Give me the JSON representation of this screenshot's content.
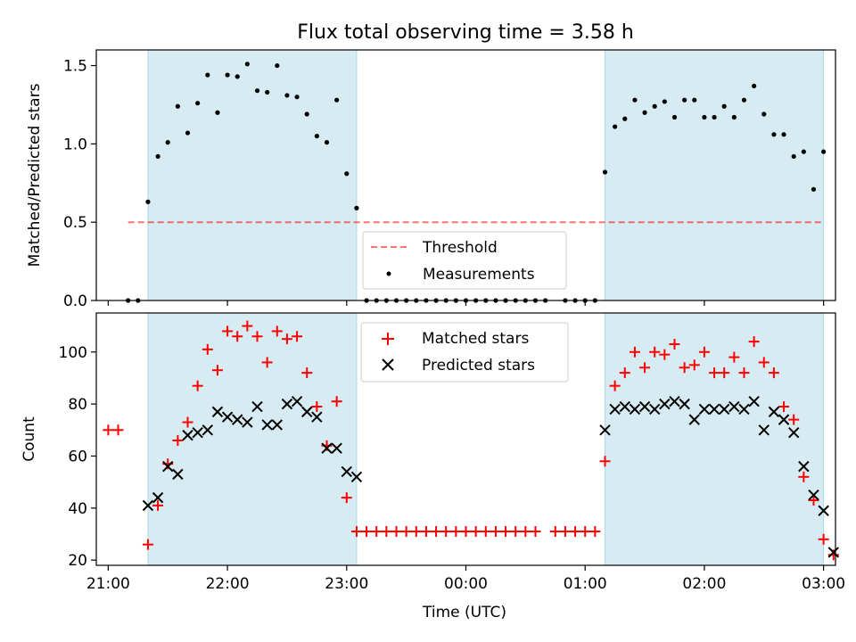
{
  "title": "Flux total observing time = 3.58 h",
  "colors": {
    "shade": "#add8e6",
    "threshold": "#ff0000",
    "matched": "#ff0000",
    "predicted": "#000000",
    "measurement": "#000000"
  },
  "x_ticks": [
    "21:00",
    "22:00",
    "23:00",
    "00:00",
    "01:00",
    "02:00",
    "03:00"
  ],
  "chart_data": [
    {
      "type": "scatter",
      "ylabel": "Matched/Predicted stars",
      "xlabel": "",
      "ylim": [
        0,
        1.6
      ],
      "y_ticks": [
        "0.0",
        "0.5",
        "1.0",
        "1.5"
      ],
      "legend": {
        "placement": "lower-center",
        "threshold_label": "Threshold",
        "measurements_label": "Measurements"
      },
      "threshold": {
        "value": 0.5,
        "x_start": "21:10",
        "x_end": "03:00"
      },
      "shaded_intervals": [
        [
          "21:20",
          "23:05"
        ],
        [
          "01:10",
          "03:00"
        ]
      ],
      "series": [
        {
          "name": "Measurements",
          "points": [
            [
              "21:10",
              0
            ],
            [
              "21:15",
              0
            ],
            [
              "21:20",
              0.63
            ],
            [
              "21:25",
              0.92
            ],
            [
              "21:30",
              1.01
            ],
            [
              "21:35",
              1.24
            ],
            [
              "21:40",
              1.07
            ],
            [
              "21:45",
              1.26
            ],
            [
              "21:50",
              1.44
            ],
            [
              "21:55",
              1.2
            ],
            [
              "22:00",
              1.44
            ],
            [
              "22:05",
              1.43
            ],
            [
              "22:10",
              1.51
            ],
            [
              "22:15",
              1.34
            ],
            [
              "22:20",
              1.33
            ],
            [
              "22:25",
              1.5
            ],
            [
              "22:30",
              1.31
            ],
            [
              "22:35",
              1.3
            ],
            [
              "22:40",
              1.19
            ],
            [
              "22:45",
              1.05
            ],
            [
              "22:50",
              1.01
            ],
            [
              "22:55",
              1.28
            ],
            [
              "23:00",
              0.81
            ],
            [
              "23:05",
              0.59
            ],
            [
              "23:10",
              0
            ],
            [
              "23:15",
              0
            ],
            [
              "23:20",
              0
            ],
            [
              "23:25",
              0
            ],
            [
              "23:30",
              0
            ],
            [
              "23:35",
              0
            ],
            [
              "23:40",
              0
            ],
            [
              "23:45",
              0
            ],
            [
              "23:50",
              0
            ],
            [
              "23:55",
              0
            ],
            [
              "00:00",
              0
            ],
            [
              "00:05",
              0
            ],
            [
              "00:10",
              0
            ],
            [
              "00:15",
              0
            ],
            [
              "00:20",
              0
            ],
            [
              "00:25",
              0
            ],
            [
              "00:30",
              0
            ],
            [
              "00:35",
              0
            ],
            [
              "00:40",
              0
            ],
            [
              "00:50",
              0
            ],
            [
              "00:55",
              0
            ],
            [
              "01:00",
              0
            ],
            [
              "01:05",
              0
            ],
            [
              "01:10",
              0.82
            ],
            [
              "01:15",
              1.11
            ],
            [
              "01:20",
              1.16
            ],
            [
              "01:25",
              1.28
            ],
            [
              "01:30",
              1.2
            ],
            [
              "01:35",
              1.24
            ],
            [
              "01:40",
              1.27
            ],
            [
              "01:45",
              1.17
            ],
            [
              "01:50",
              1.28
            ],
            [
              "01:55",
              1.28
            ],
            [
              "02:00",
              1.17
            ],
            [
              "02:05",
              1.17
            ],
            [
              "02:10",
              1.24
            ],
            [
              "02:15",
              1.17
            ],
            [
              "02:20",
              1.28
            ],
            [
              "02:25",
              1.37
            ],
            [
              "02:30",
              1.19
            ],
            [
              "02:35",
              1.06
            ],
            [
              "02:40",
              1.06
            ],
            [
              "02:45",
              0.92
            ],
            [
              "02:50",
              0.95
            ],
            [
              "02:55",
              0.71
            ],
            [
              "03:00",
              0.95
            ]
          ]
        }
      ]
    },
    {
      "type": "scatter",
      "ylabel": "Count",
      "xlabel": "Time (UTC)",
      "ylim": [
        18,
        115
      ],
      "y_ticks": [
        "20",
        "40",
        "60",
        "80",
        "100"
      ],
      "legend": {
        "placement": "upper-center",
        "matched_label": "Matched stars",
        "predicted_label": "Predicted stars"
      },
      "shaded_intervals": [
        [
          "21:20",
          "23:05"
        ],
        [
          "01:10",
          "03:00"
        ]
      ],
      "series": [
        {
          "name": "Matched stars",
          "marker": "plus",
          "points": [
            [
              "21:00",
              70
            ],
            [
              "21:05",
              70
            ],
            [
              "21:20",
              26
            ],
            [
              "21:25",
              41
            ],
            [
              "21:30",
              57
            ],
            [
              "21:35",
              66
            ],
            [
              "21:40",
              73
            ],
            [
              "21:45",
              87
            ],
            [
              "21:50",
              101
            ],
            [
              "21:55",
              93
            ],
            [
              "22:00",
              108
            ],
            [
              "22:05",
              106
            ],
            [
              "22:10",
              110
            ],
            [
              "22:15",
              106
            ],
            [
              "22:20",
              96
            ],
            [
              "22:25",
              108
            ],
            [
              "22:30",
              105
            ],
            [
              "22:35",
              106
            ],
            [
              "22:40",
              92
            ],
            [
              "22:45",
              79
            ],
            [
              "22:50",
              64
            ],
            [
              "22:55",
              81
            ],
            [
              "23:00",
              44
            ],
            [
              "23:05",
              31
            ],
            [
              "23:10",
              31
            ],
            [
              "23:15",
              31
            ],
            [
              "23:20",
              31
            ],
            [
              "23:25",
              31
            ],
            [
              "23:30",
              31
            ],
            [
              "23:35",
              31
            ],
            [
              "23:40",
              31
            ],
            [
              "23:45",
              31
            ],
            [
              "23:50",
              31
            ],
            [
              "23:55",
              31
            ],
            [
              "00:00",
              31
            ],
            [
              "00:05",
              31
            ],
            [
              "00:10",
              31
            ],
            [
              "00:15",
              31
            ],
            [
              "00:20",
              31
            ],
            [
              "00:25",
              31
            ],
            [
              "00:30",
              31
            ],
            [
              "00:35",
              31
            ],
            [
              "00:45",
              31
            ],
            [
              "00:50",
              31
            ],
            [
              "00:55",
              31
            ],
            [
              "01:00",
              31
            ],
            [
              "01:05",
              31
            ],
            [
              "01:10",
              58
            ],
            [
              "01:15",
              87
            ],
            [
              "01:20",
              92
            ],
            [
              "01:25",
              100
            ],
            [
              "01:30",
              94
            ],
            [
              "01:35",
              100
            ],
            [
              "01:40",
              99
            ],
            [
              "01:45",
              103
            ],
            [
              "01:50",
              94
            ],
            [
              "01:55",
              95
            ],
            [
              "02:00",
              100
            ],
            [
              "02:05",
              92
            ],
            [
              "02:10",
              92
            ],
            [
              "02:15",
              98
            ],
            [
              "02:20",
              92
            ],
            [
              "02:25",
              104
            ],
            [
              "02:30",
              96
            ],
            [
              "02:35",
              92
            ],
            [
              "02:40",
              79
            ],
            [
              "02:45",
              74
            ],
            [
              "02:50",
              52
            ],
            [
              "02:55",
              43
            ],
            [
              "03:00",
              28
            ],
            [
              "03:05",
              22
            ]
          ]
        },
        {
          "name": "Predicted stars",
          "marker": "x",
          "points": [
            [
              "21:20",
              41
            ],
            [
              "21:25",
              44
            ],
            [
              "21:30",
              56
            ],
            [
              "21:35",
              53
            ],
            [
              "21:40",
              68
            ],
            [
              "21:45",
              69
            ],
            [
              "21:50",
              70
            ],
            [
              "21:55",
              77
            ],
            [
              "22:00",
              75
            ],
            [
              "22:05",
              74
            ],
            [
              "22:10",
              73
            ],
            [
              "22:15",
              79
            ],
            [
              "22:20",
              72
            ],
            [
              "22:25",
              72
            ],
            [
              "22:30",
              80
            ],
            [
              "22:35",
              81
            ],
            [
              "22:40",
              77
            ],
            [
              "22:45",
              75
            ],
            [
              "22:50",
              63
            ],
            [
              "22:55",
              63
            ],
            [
              "23:00",
              54
            ],
            [
              "23:05",
              52
            ],
            [
              "01:10",
              70
            ],
            [
              "01:15",
              78
            ],
            [
              "01:20",
              79
            ],
            [
              "01:25",
              78
            ],
            [
              "01:30",
              79
            ],
            [
              "01:35",
              78
            ],
            [
              "01:40",
              80
            ],
            [
              "01:45",
              81
            ],
            [
              "01:50",
              80
            ],
            [
              "01:55",
              74
            ],
            [
              "02:00",
              78
            ],
            [
              "02:05",
              78
            ],
            [
              "02:10",
              78
            ],
            [
              "02:15",
              79
            ],
            [
              "02:20",
              78
            ],
            [
              "02:25",
              81
            ],
            [
              "02:30",
              70
            ],
            [
              "02:35",
              77
            ],
            [
              "02:40",
              74
            ],
            [
              "02:45",
              69
            ],
            [
              "02:50",
              56
            ],
            [
              "02:55",
              45
            ],
            [
              "03:00",
              39
            ],
            [
              "03:05",
              23
            ]
          ]
        }
      ]
    }
  ]
}
